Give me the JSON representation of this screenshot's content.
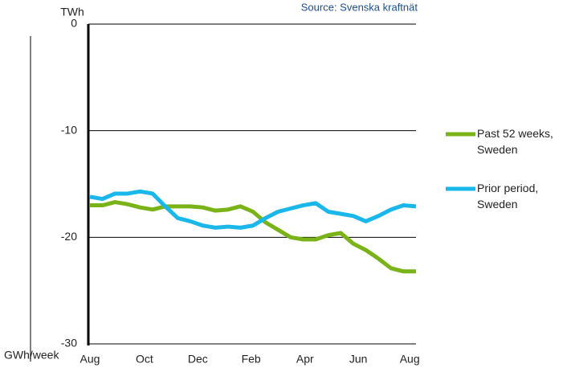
{
  "chart_data": {
    "type": "line",
    "source": "Source: Svenska kraftnät",
    "ylabel": "TWh",
    "y2label": "GWh/week",
    "x": [
      0,
      2,
      4,
      6,
      8,
      10,
      12,
      14,
      16,
      18,
      20,
      22,
      24,
      26,
      28,
      30,
      32,
      34,
      36,
      38,
      40,
      42,
      44,
      46,
      48,
      50,
      52
    ],
    "xlim": [
      0,
      52
    ],
    "xticks": [
      {
        "value": 0,
        "label": "Aug"
      },
      {
        "value": 8.7,
        "label": "Oct"
      },
      {
        "value": 17.2,
        "label": "Dec"
      },
      {
        "value": 25.7,
        "label": "Feb"
      },
      {
        "value": 34.3,
        "label": "Apr"
      },
      {
        "value": 42.8,
        "label": "Jun"
      },
      {
        "value": 51,
        "label": "Aug"
      }
    ],
    "ylim": [
      -30,
      0
    ],
    "yticks": [
      0,
      -10,
      -20,
      -30
    ],
    "grid": true,
    "legend": "right",
    "series": [
      {
        "name": "Past 52 weeks, Sweden",
        "color": "#7ab317",
        "values": [
          -17.0,
          -17.0,
          -16.7,
          -16.9,
          -17.2,
          -17.4,
          -17.1,
          -17.1,
          -17.1,
          -17.2,
          -17.5,
          -17.4,
          -17.1,
          -17.6,
          -18.6,
          -19.3,
          -20.0,
          -20.2,
          -20.2,
          -19.8,
          -19.6,
          -20.6,
          -21.2,
          -22.0,
          -22.9,
          -23.2,
          -23.2
        ]
      },
      {
        "name": "Prior period, Sweden",
        "color": "#1ab7ea",
        "values": [
          -16.2,
          -16.4,
          -15.9,
          -15.9,
          -15.7,
          -15.9,
          -17.1,
          -18.2,
          -18.5,
          -18.9,
          -19.1,
          -19.0,
          -19.1,
          -18.9,
          -18.2,
          -17.6,
          -17.3,
          -17.0,
          -16.8,
          -17.6,
          -17.8,
          -18.0,
          -18.5,
          -18.0,
          -17.4,
          -17.0,
          -17.1
        ]
      }
    ]
  }
}
